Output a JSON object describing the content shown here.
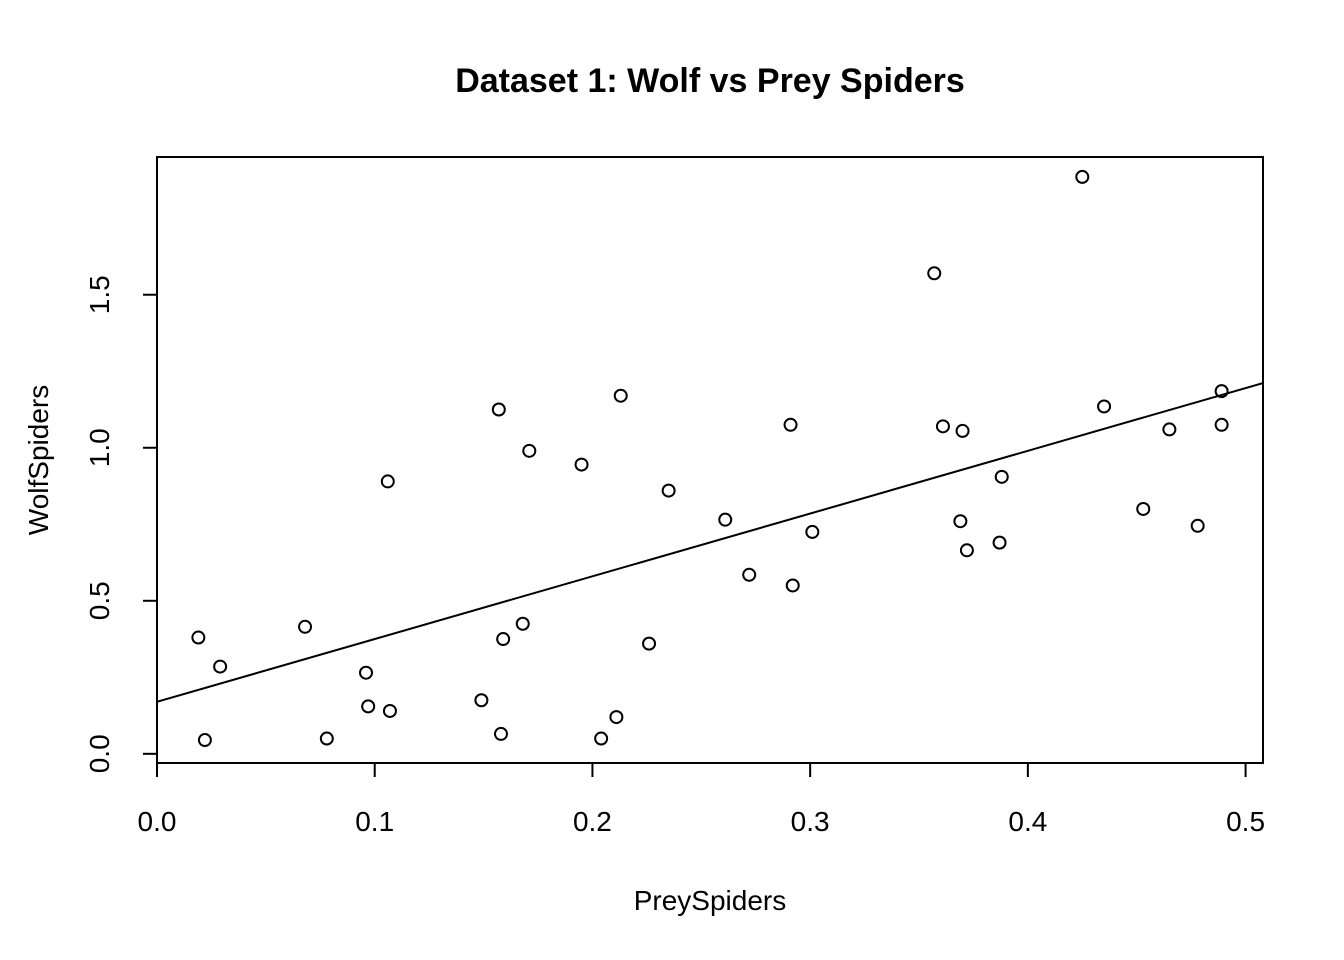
{
  "chart_data": {
    "type": "scatter",
    "title": "Dataset 1: Wolf vs Prey Spiders",
    "xlabel": "PreySpiders",
    "ylabel": "WolfSpiders",
    "xlim": [
      0.0,
      0.508
    ],
    "ylim": [
      -0.03,
      1.95
    ],
    "xticks": [
      0.0,
      0.1,
      0.2,
      0.3,
      0.4,
      0.5
    ],
    "xtick_labels": [
      "0.0",
      "0.1",
      "0.2",
      "0.3",
      "0.4",
      "0.5"
    ],
    "yticks": [
      0.0,
      0.5,
      1.0,
      1.5
    ],
    "ytick_labels": [
      "0.0",
      "0.5",
      "1.0",
      "1.5"
    ],
    "grid": false,
    "legend": "none",
    "marker": "open-circle",
    "points": [
      {
        "x": 0.019,
        "y": 0.38
      },
      {
        "x": 0.022,
        "y": 0.045
      },
      {
        "x": 0.029,
        "y": 0.285
      },
      {
        "x": 0.068,
        "y": 0.415
      },
      {
        "x": 0.078,
        "y": 0.05
      },
      {
        "x": 0.096,
        "y": 0.265
      },
      {
        "x": 0.097,
        "y": 0.155
      },
      {
        "x": 0.106,
        "y": 0.89
      },
      {
        "x": 0.107,
        "y": 0.14
      },
      {
        "x": 0.149,
        "y": 0.175
      },
      {
        "x": 0.157,
        "y": 1.125
      },
      {
        "x": 0.158,
        "y": 0.065
      },
      {
        "x": 0.159,
        "y": 0.375
      },
      {
        "x": 0.168,
        "y": 0.425
      },
      {
        "x": 0.171,
        "y": 0.99
      },
      {
        "x": 0.195,
        "y": 0.945
      },
      {
        "x": 0.204,
        "y": 0.05
      },
      {
        "x": 0.211,
        "y": 0.12
      },
      {
        "x": 0.213,
        "y": 1.17
      },
      {
        "x": 0.226,
        "y": 0.36
      },
      {
        "x": 0.235,
        "y": 0.86
      },
      {
        "x": 0.261,
        "y": 0.765
      },
      {
        "x": 0.272,
        "y": 0.585
      },
      {
        "x": 0.291,
        "y": 1.075
      },
      {
        "x": 0.292,
        "y": 0.55
      },
      {
        "x": 0.301,
        "y": 0.725
      },
      {
        "x": 0.357,
        "y": 1.57
      },
      {
        "x": 0.361,
        "y": 1.07
      },
      {
        "x": 0.369,
        "y": 0.76
      },
      {
        "x": 0.37,
        "y": 1.055
      },
      {
        "x": 0.372,
        "y": 0.665
      },
      {
        "x": 0.387,
        "y": 0.69
      },
      {
        "x": 0.388,
        "y": 0.905
      },
      {
        "x": 0.425,
        "y": 1.885
      },
      {
        "x": 0.435,
        "y": 1.135
      },
      {
        "x": 0.453,
        "y": 0.8
      },
      {
        "x": 0.465,
        "y": 1.06
      },
      {
        "x": 0.478,
        "y": 0.745
      },
      {
        "x": 0.489,
        "y": 1.185
      },
      {
        "x": 0.489,
        "y": 1.075
      }
    ],
    "fit_line": {
      "intercept": 0.17,
      "slope": 2.05
    }
  }
}
